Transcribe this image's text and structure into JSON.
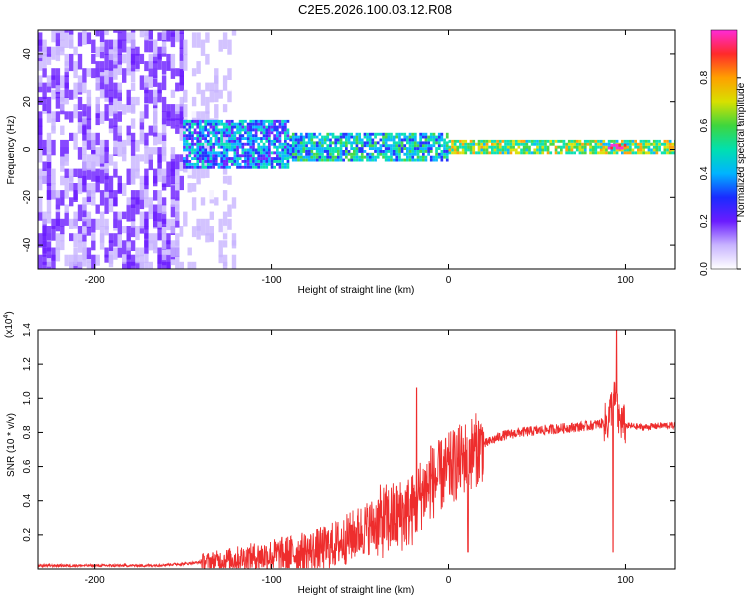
{
  "title": "C2E5.2026.100.03.12.R08",
  "colors": {
    "snr_line": "#ee2d2d",
    "colormap": [
      "#ffffff",
      "#c8b4ff",
      "#6a1cff",
      "#1a2bff",
      "#00b4ff",
      "#00e0b0",
      "#3ed63e",
      "#d8e000",
      "#ffa000",
      "#ff2a2a",
      "#ff2ad8"
    ]
  },
  "chart_data": [
    {
      "type": "heatmap",
      "title": "C2E5.2026.100.03.12.R08",
      "xlabel": "Height of straight line (km)",
      "ylabel": "Frequency (Hz)",
      "xlim": [
        -232,
        128
      ],
      "ylim": [
        -50,
        50
      ],
      "xticks": [
        "-200",
        "-100",
        "0",
        "100"
      ],
      "yticks": [
        "-40",
        "-20",
        "0",
        "20",
        "40"
      ],
      "colorbar": {
        "label": "Normalized spectral amplitude",
        "range": [
          0.0,
          1.0
        ],
        "ticks": [
          "0.0",
          "0.2",
          "0.4",
          "0.6",
          "0.8"
        ]
      },
      "regions": [
        {
          "x_range": [
            -232,
            -150
          ],
          "freq_range": [
            -50,
            50
          ],
          "amplitude": 0.15
        },
        {
          "x_range": [
            -150,
            -120
          ],
          "freq_range": [
            -50,
            50
          ],
          "amplitude": 0.08
        },
        {
          "x_range": [
            -150,
            -90
          ],
          "freq_range": [
            -8,
            12
          ],
          "amplitude": 0.35
        },
        {
          "x_range": [
            -90,
            0
          ],
          "freq_range": [
            -5,
            6
          ],
          "amplitude": 0.45
        },
        {
          "x_range": [
            0,
            128
          ],
          "freq_range": [
            -2,
            4
          ],
          "amplitude": 0.6
        },
        {
          "x_range": [
            90,
            100
          ],
          "freq_range": [
            0,
            2
          ],
          "amplitude": 0.95
        }
      ]
    },
    {
      "type": "line",
      "xlabel": "Height of straight line (km)",
      "ylabel": "SNR (10 * v/v)",
      "scale_label": "(x10",
      "scale_exp": "4",
      "xlim": [
        -232,
        128
      ],
      "ylim": [
        0,
        1.4
      ],
      "xticks": [
        "-200",
        "-100",
        "0",
        "100"
      ],
      "yticks": [
        "0.2",
        "0.4",
        "0.6",
        "0.8",
        "1.0",
        "1.2",
        "1.4"
      ],
      "series": [
        {
          "x": [
            -232,
            -200,
            -170,
            -150,
            -130,
            -110,
            -100,
            -90,
            -80,
            -70,
            -60,
            -50,
            -40,
            -30,
            -20,
            -15,
            -10,
            0,
            10,
            20,
            30,
            40,
            50,
            60,
            70,
            80,
            90,
            92,
            94,
            96,
            98,
            100,
            110,
            120,
            128
          ],
          "y": [
            0.02,
            0.02,
            0.02,
            0.03,
            0.05,
            0.07,
            0.08,
            0.09,
            0.1,
            0.12,
            0.16,
            0.22,
            0.27,
            0.3,
            0.35,
            0.45,
            0.5,
            0.58,
            0.66,
            0.73,
            0.78,
            0.8,
            0.81,
            0.82,
            0.83,
            0.84,
            0.86,
            0.95,
            1.0,
            0.88,
            0.86,
            0.84,
            0.83,
            0.84,
            0.84
          ],
          "spikes": [
            {
              "x": -18,
              "y": 1.06
            },
            {
              "x": -10,
              "y": 0.72
            },
            {
              "x": 11,
              "y": 0.1
            },
            {
              "x": 93,
              "y": 0.1
            },
            {
              "x": 95,
              "y": 1.4
            }
          ]
        }
      ]
    }
  ]
}
